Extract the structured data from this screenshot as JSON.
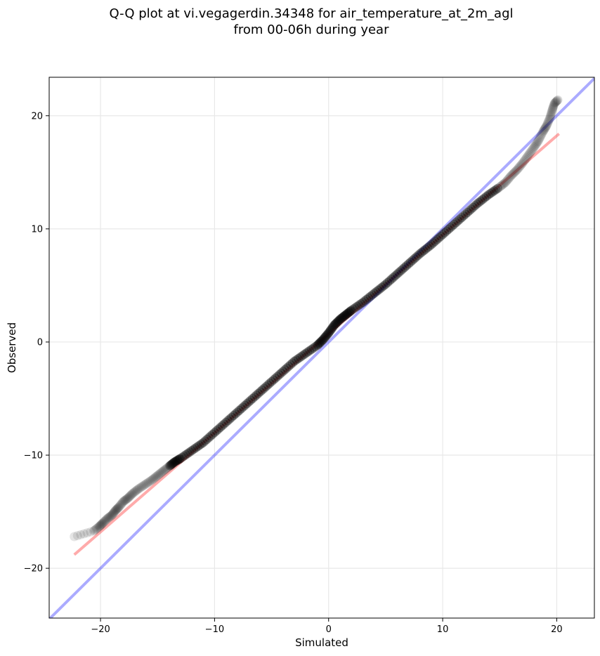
{
  "chart_data": {
    "type": "scatter",
    "title_lines": [
      "Q-Q plot at vi.vegagerdin.34348 for air_temperature_at_2m_agl",
      "from 00-06h during year"
    ],
    "xlabel": "Simulated",
    "ylabel": "Observed",
    "xlim": [
      -24.5,
      23.3
    ],
    "ylim": [
      -24.4,
      23.4
    ],
    "xticks": [
      -20,
      -10,
      0,
      10,
      20
    ],
    "yticks": [
      -20,
      -10,
      0,
      10,
      20
    ],
    "grid": true,
    "series": [
      {
        "kind": "quantile-points",
        "color": "#000000",
        "x": [
          -22.3,
          -20.6,
          -20.1,
          -19.8,
          -19.4,
          -19.0,
          -18.7,
          -18.4,
          -18.0,
          -17.6,
          -17.2,
          -16.7,
          -16.1,
          -15.5,
          -15.0,
          -14.5,
          -14.0,
          -13.5,
          -13.0,
          -12.0,
          -11.0,
          -10.0,
          -9.0,
          -8.0,
          -7.0,
          -6.0,
          -5.0,
          -4.0,
          -3.0,
          -2.0,
          -1.0,
          -0.5,
          0.0,
          0.5,
          1.0,
          1.5,
          2.0,
          3.0,
          4.0,
          5.0,
          6.0,
          7.0,
          8.0,
          9.0,
          10.0,
          11.0,
          12.0,
          13.0,
          14.0,
          15.0,
          15.5,
          16.0,
          16.5,
          17.0,
          17.5,
          18.0,
          18.4,
          18.8,
          19.1,
          19.4,
          19.6,
          19.8,
          20.1
        ],
        "y": [
          -17.2,
          -16.7,
          -16.3,
          -16.0,
          -15.6,
          -15.3,
          -14.9,
          -14.6,
          -14.1,
          -13.8,
          -13.4,
          -13.0,
          -12.6,
          -12.2,
          -11.8,
          -11.4,
          -11.0,
          -10.6,
          -10.3,
          -9.6,
          -8.9,
          -8.0,
          -7.1,
          -6.2,
          -5.3,
          -4.4,
          -3.5,
          -2.6,
          -1.7,
          -1.0,
          -0.3,
          0.2,
          0.8,
          1.5,
          2.0,
          2.4,
          2.8,
          3.5,
          4.3,
          5.1,
          6.0,
          6.9,
          7.8,
          8.6,
          9.5,
          10.4,
          11.3,
          12.2,
          13.0,
          13.7,
          14.1,
          14.7,
          15.2,
          15.8,
          16.5,
          17.2,
          17.8,
          18.6,
          19.1,
          19.8,
          20.5,
          21.1,
          21.4
        ]
      },
      {
        "kind": "fit-line",
        "color": "#ff0000",
        "x": [
          -22.3,
          20.2
        ],
        "y": [
          -18.8,
          18.4
        ]
      },
      {
        "kind": "identity-line",
        "color": "#0000ff",
        "x": [
          -24.5,
          23.3
        ],
        "y": [
          -24.5,
          23.3
        ]
      }
    ]
  }
}
